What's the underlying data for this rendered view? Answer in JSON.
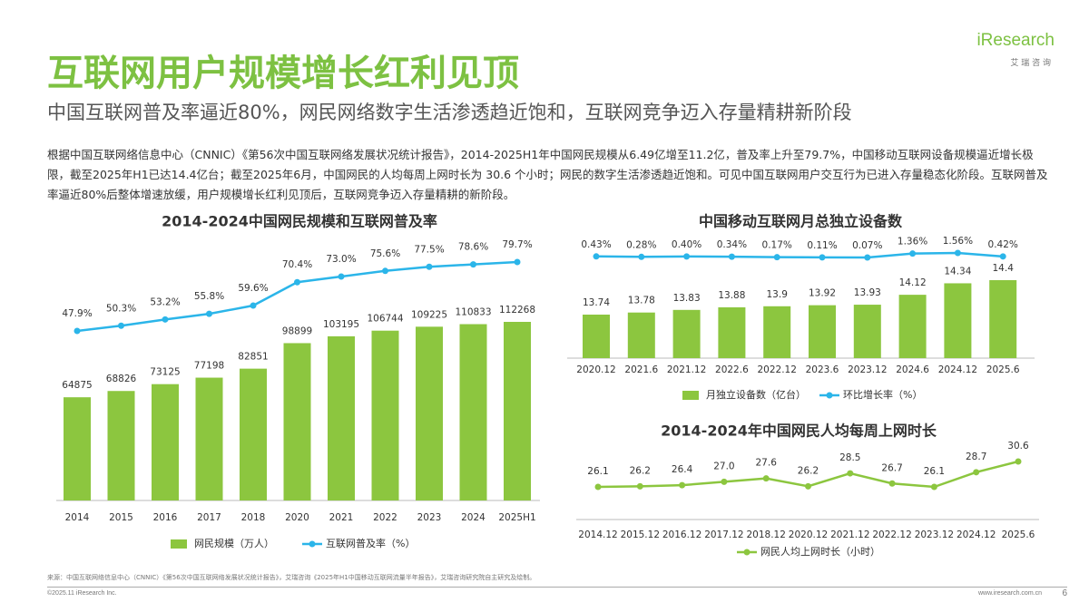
{
  "header": {
    "title": "互联网用户规模增长红利见顶",
    "subtitle": "中国互联网普及率逼近80%，网民网络数字生活渗透趋近饱和，互联网竞争迈入存量精耕新阶段",
    "logo": "iResearch",
    "logo_sub": "艾 瑞 咨 询"
  },
  "body": "根据中国互联网络信息中心（CNNIC）《第56次中国互联网络发展状况统计报告》，2014-2025H1年中国网民规模从6.49亿增至11.2亿，普及率上升至79.7%，中国移动互联网设备规模逼近增长极限，截至2025年H1已达14.4亿台；截至2025年6月，中国网民的人均每周上网时长为 30.6 个小时；网民的数字生活渗透趋近饱和。可见中国互联网用户交互行为已进入存量稳态化阶段。互联网普及率逼近80%后整体增速放缓，用户规模增长红利见顶后，互联网竞争迈入存量精耕的新阶段。",
  "chart_data": [
    {
      "type": "bar_line",
      "title": "2014-2024中国网民规模和互联网普及率",
      "categories": [
        "2014",
        "2015",
        "2016",
        "2017",
        "2018",
        "2020",
        "2021",
        "2022",
        "2023",
        "2024",
        "2025H1"
      ],
      "series": [
        {
          "name": "网民规模（万人）",
          "type": "bar",
          "color": "#8cc63f",
          "values": [
            64875,
            68826,
            73125,
            77198,
            82851,
            98899,
            103195,
            106744,
            109225,
            110833,
            112268
          ]
        },
        {
          "name": "互联网普及率（%）",
          "type": "line",
          "axis": "y2",
          "color": "#2bb5e9",
          "values": [
            47.9,
            50.3,
            53.2,
            55.8,
            59.6,
            70.4,
            73.0,
            75.6,
            77.5,
            78.6,
            79.7
          ],
          "value_labels": [
            "47.9%",
            "50.3%",
            "53.2%",
            "55.8%",
            "59.6%",
            "70.4%",
            "73.0%",
            "75.6%",
            "77.5%",
            "78.6%",
            "79.7%"
          ]
        }
      ]
    },
    {
      "type": "bar_line",
      "title": "中国移动互联网月总独立设备数",
      "categories": [
        "2020.12",
        "2021.6",
        "2021.12",
        "2022.6",
        "2022.12",
        "2023.6",
        "2023.12",
        "2024.6",
        "2024.12",
        "2025.6"
      ],
      "series": [
        {
          "name": "月独立设备数（亿台）",
          "type": "bar",
          "color": "#8cc63f",
          "values": [
            13.74,
            13.78,
            13.83,
            13.88,
            13.9,
            13.92,
            13.93,
            14.12,
            14.34,
            14.4
          ]
        },
        {
          "name": "环比增长率（%）",
          "type": "line",
          "axis": "y2",
          "color": "#2bb5e9",
          "values": [
            0.43,
            0.28,
            0.4,
            0.34,
            0.17,
            0.11,
            0.07,
            1.36,
            1.56,
            0.42
          ],
          "value_labels": [
            "0.43%",
            "0.28%",
            "0.40%",
            "0.34%",
            "0.17%",
            "0.11%",
            "0.07%",
            "1.36%",
            "1.56%",
            "0.42%"
          ]
        }
      ]
    },
    {
      "type": "line",
      "title": "2014-2024年中国网民人均每周上网时长",
      "categories": [
        "2014.12",
        "2015.12",
        "2016.12",
        "2017.12",
        "2018.12",
        "2020.12",
        "2021.12",
        "2022.12",
        "2023.12",
        "2024.12",
        "2025.6"
      ],
      "series": [
        {
          "name": "网民人均上网时长（小时）",
          "type": "line",
          "color": "#8cc63f",
          "values": [
            26.1,
            26.2,
            26.4,
            27.0,
            27.6,
            26.2,
            28.5,
            26.7,
            26.1,
            28.7,
            30.6
          ],
          "value_labels": [
            "26.1",
            "26.2",
            "26.4",
            "27.0",
            "27.6",
            "26.2",
            "28.5",
            "26.7",
            "26.1",
            "28.7",
            "30.6"
          ]
        }
      ]
    }
  ],
  "footer": {
    "source": "来源：中国互联网络信息中心（CNNIC）《第56次中国互联网络发展状况统计报告》，艾瑞咨询《2025年H1中国移动互联网流量半年报告》，艾瑞咨询研究院自主研究及绘制。",
    "copyright": "©2025.11 iResearch Inc.",
    "url": "www.iresearch.com.cn",
    "page": "6"
  }
}
